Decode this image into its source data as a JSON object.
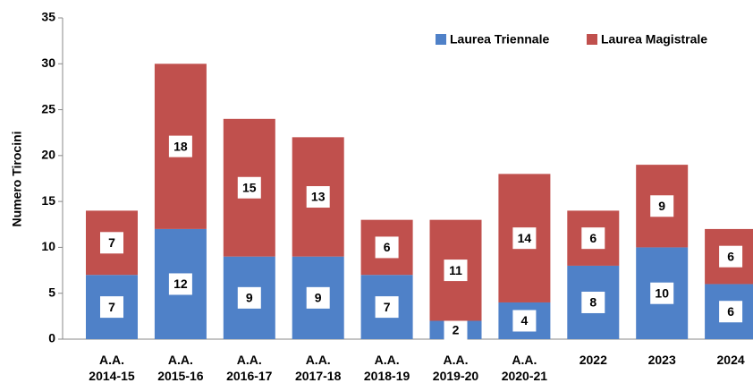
{
  "chart_data": {
    "type": "stacked_bar",
    "y_label": "Numero Tirocini",
    "categories": [
      "A.A.\n2014-15",
      "A.A.\n2015-16",
      "A.A.\n2016-17",
      "A.A.\n2017-18",
      "A.A.\n2018-19",
      "A.A.\n2019-20",
      "A.A.\n2020-21",
      "2022",
      "2023",
      "2024"
    ],
    "series": [
      {
        "name": "Laurea Triennale",
        "color": "#4f81c8",
        "values": [
          7,
          12,
          9,
          9,
          7,
          2,
          4,
          8,
          10,
          6
        ]
      },
      {
        "name": "Laurea Magistrale",
        "color": "#c0504d",
        "values": [
          7,
          18,
          15,
          13,
          6,
          11,
          14,
          6,
          9,
          6
        ]
      }
    ],
    "ylim": [
      0,
      35
    ],
    "yticks": [
      0,
      5,
      10,
      15,
      20,
      25,
      30,
      35
    ],
    "legend": "top-right",
    "grid": false
  }
}
